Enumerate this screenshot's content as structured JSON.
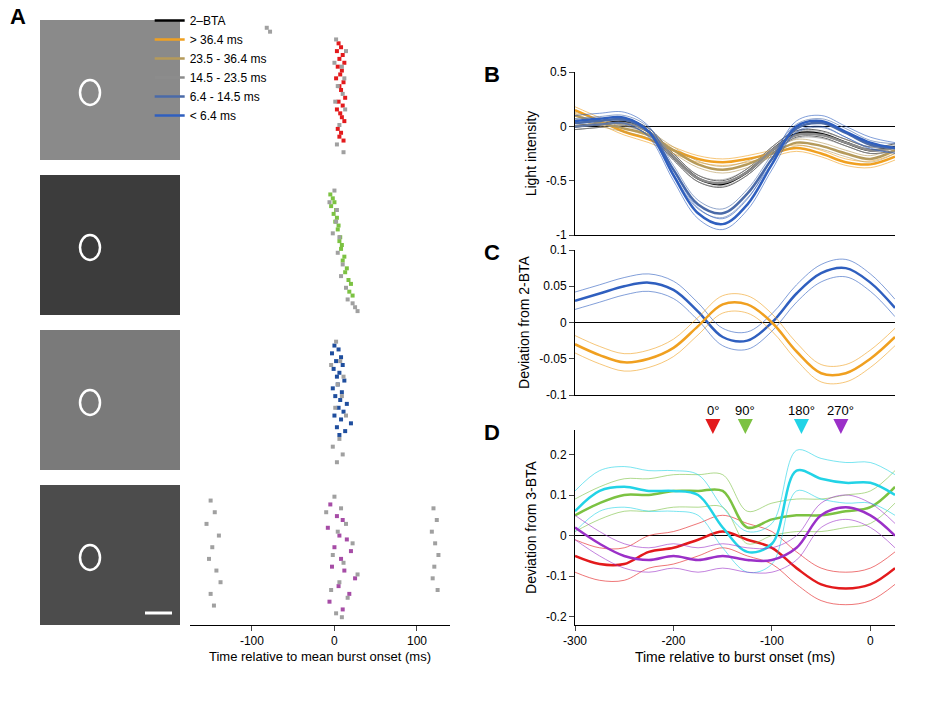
{
  "chart_data": [
    {
      "type": "scatter",
      "panel": "A",
      "ylim": [
        0,
        36
      ],
      "tick_labels": false,
      "series": [
        {
          "color": "#e31a1c",
          "marker": "square",
          "x": [
            5,
            8,
            3,
            10,
            6,
            12,
            4,
            9,
            7,
            2,
            11,
            6,
            8,
            13,
            5,
            10,
            3,
            7,
            9,
            12,
            4,
            8,
            6,
            11
          ],
          "y": [
            30,
            29,
            28,
            27,
            26,
            25,
            24,
            23,
            22,
            21,
            20,
            19,
            18,
            16,
            15,
            14,
            13,
            12,
            11,
            10,
            8,
            7,
            6,
            5
          ]
        },
        {
          "color": "#a0a0a0",
          "marker": "square",
          "x": [
            2,
            14,
            0,
            9,
            12,
            4,
            10,
            1,
            13,
            6,
            3,
            11,
            -82,
            -78
          ],
          "y": [
            31,
            28,
            25,
            24,
            21,
            19,
            17,
            15,
            13,
            9,
            4,
            2,
            34,
            33
          ]
        }
      ]
    },
    {
      "type": "scatter",
      "ylim": [
        0,
        36
      ],
      "tick_labels": false,
      "series": [
        {
          "color": "#7cc242",
          "marker": "square",
          "x": [
            -5,
            -2,
            0,
            -4,
            2,
            -1,
            3,
            1,
            5,
            4,
            7,
            6,
            9,
            8,
            12,
            10,
            15,
            13,
            17,
            20,
            18,
            22
          ],
          "y": [
            31,
            30,
            29,
            28,
            27,
            26,
            25,
            24,
            23,
            22,
            20,
            19,
            18,
            17,
            15,
            14,
            12,
            11,
            9,
            8,
            6,
            5
          ]
        },
        {
          "color": "#a0a0a0",
          "marker": "square",
          "x": [
            0,
            -6,
            3,
            2,
            -2,
            6,
            4,
            10,
            8,
            14,
            16,
            22,
            25,
            28
          ],
          "y": [
            32,
            29,
            27,
            24,
            21,
            20,
            16,
            13,
            10,
            7,
            4,
            3,
            2,
            1
          ]
        }
      ]
    },
    {
      "type": "scatter",
      "ylim": [
        0,
        36
      ],
      "tick_labels": false,
      "series": [
        {
          "color": "#1f4e9e",
          "marker": "square",
          "x": [
            0,
            5,
            -3,
            8,
            2,
            10,
            -1,
            6,
            3,
            12,
            4,
            -2,
            9,
            1,
            7,
            15,
            5,
            11,
            0,
            8,
            20,
            3,
            13,
            6
          ],
          "y": [
            32,
            31,
            30,
            29,
            28,
            27,
            26,
            25,
            24,
            23,
            22,
            21,
            20,
            19,
            18,
            17,
            16,
            15,
            14,
            13,
            12,
            11,
            10,
            9
          ]
        },
        {
          "color": "#a0a0a0",
          "marker": "square",
          "x": [
            2,
            7,
            -4,
            11,
            4,
            9,
            1,
            14,
            6,
            -2,
            10,
            3
          ],
          "y": [
            33,
            28,
            27,
            24,
            22,
            19,
            16,
            14,
            8,
            6,
            4,
            2
          ]
        }
      ]
    },
    {
      "type": "scatter",
      "xlabel": "Time relative to mean burst onset (ms)",
      "xlim": [
        -175,
        140
      ],
      "xticks": [
        -100,
        0,
        100
      ],
      "ylim": [
        0,
        36
      ],
      "tick_labels": "x",
      "series": [
        {
          "color": "#a64ca6",
          "marker": "square",
          "x": [
            -5,
            3,
            10,
            -8,
            6,
            15,
            0,
            20,
            8,
            -3,
            12,
            25,
            5,
            18,
            -6,
            10
          ],
          "y": [
            31,
            28,
            27,
            25,
            23,
            22,
            20,
            19,
            17,
            15,
            14,
            12,
            10,
            8,
            6,
            4
          ]
        },
        {
          "color": "#a0a0a0",
          "marker": "square",
          "x": [
            0,
            8,
            -10,
            14,
            4,
            22,
            -2,
            11,
            28,
            6,
            -4,
            16,
            2,
            9,
            -150,
            -145,
            -155,
            -140,
            -148,
            -152,
            -143,
            -138,
            -150,
            -146,
            120,
            124,
            118,
            122,
            126,
            121,
            119,
            125
          ],
          "y": [
            33,
            30,
            29,
            26,
            24,
            21,
            18,
            16,
            13,
            11,
            9,
            7,
            3,
            2,
            32,
            29,
            26,
            23,
            20,
            17,
            14,
            11,
            8,
            5,
            30,
            27,
            24,
            21,
            18,
            15,
            12,
            9
          ]
        }
      ]
    },
    {
      "type": "line",
      "panel": "B",
      "ylabel": "Light intensity",
      "xlim": [
        -300,
        25
      ],
      "ylim": [
        -1,
        0.5
      ],
      "yticks": [
        -1,
        -0.5,
        0,
        0.5
      ],
      "tick_labels": "y",
      "legend": "top",
      "x": [
        -300,
        -275,
        -250,
        -225,
        -200,
        -175,
        -150,
        -125,
        -100,
        -75,
        -50,
        -25,
        0,
        25
      ],
      "series": [
        {
          "name": "2–BTA",
          "color": "#000000",
          "values": [
            0.0,
            0.02,
            0.04,
            -0.05,
            -0.28,
            -0.48,
            -0.53,
            -0.42,
            -0.22,
            -0.07,
            -0.07,
            -0.15,
            -0.22,
            -0.19
          ],
          "error": [
            0.03,
            0.03,
            0.03,
            0.03,
            0.03,
            0.03,
            0.03,
            0.03,
            0.03,
            0.03,
            0.03,
            0.03,
            0.03,
            0.03
          ]
        },
        {
          "name": "> 36.4 ms",
          "color": "#f0a020",
          "values": [
            0.15,
            0.05,
            -0.05,
            -0.12,
            -0.22,
            -0.3,
            -0.33,
            -0.3,
            -0.25,
            -0.2,
            -0.25,
            -0.33,
            -0.35,
            -0.28
          ],
          "error": [
            0.03,
            0.03,
            0.03,
            0.03,
            0.03,
            0.03,
            0.03,
            0.03,
            0.03,
            0.03,
            0.03,
            0.03,
            0.03,
            0.03
          ]
        },
        {
          "name": "23.5 - 36.4 ms",
          "color": "#b59a5a",
          "values": [
            0.1,
            0.03,
            -0.02,
            -0.08,
            -0.22,
            -0.35,
            -0.4,
            -0.35,
            -0.25,
            -0.15,
            -0.18,
            -0.25,
            -0.3,
            -0.22
          ],
          "error": [
            0.03,
            0.03,
            0.03,
            0.03,
            0.03,
            0.03,
            0.03,
            0.03,
            0.03,
            0.03,
            0.03,
            0.03,
            0.03,
            0.03
          ]
        },
        {
          "name": "14.5 - 23.5 ms",
          "color": "#8c8c8c",
          "values": [
            0.0,
            0.02,
            0.03,
            -0.05,
            -0.28,
            -0.48,
            -0.52,
            -0.42,
            -0.22,
            -0.08,
            -0.08,
            -0.15,
            -0.22,
            -0.2
          ],
          "error": [
            0.03,
            0.03,
            0.03,
            0.03,
            0.03,
            0.03,
            0.03,
            0.03,
            0.03,
            0.03,
            0.03,
            0.03,
            0.03,
            0.03
          ]
        },
        {
          "name": "6.4 - 14.5 ms",
          "color": "#4a6aa8",
          "values": [
            0.03,
            0.05,
            0.06,
            -0.05,
            -0.4,
            -0.72,
            -0.8,
            -0.62,
            -0.3,
            -0.02,
            0.03,
            -0.06,
            -0.17,
            -0.2
          ],
          "error": [
            0.04,
            0.04,
            0.04,
            0.04,
            0.04,
            0.04,
            0.04,
            0.04,
            0.04,
            0.04,
            0.04,
            0.04,
            0.04,
            0.04
          ]
        },
        {
          "name": "< 6.4 ms",
          "color": "#2f5fbf",
          "values": [
            0.05,
            0.07,
            0.08,
            -0.05,
            -0.45,
            -0.8,
            -0.9,
            -0.72,
            -0.35,
            0.0,
            0.05,
            -0.05,
            -0.15,
            -0.2
          ],
          "error": [
            0.05,
            0.05,
            0.05,
            0.05,
            0.05,
            0.05,
            0.05,
            0.05,
            0.05,
            0.05,
            0.05,
            0.05,
            0.05,
            0.05
          ]
        }
      ]
    },
    {
      "type": "line",
      "panel": "C",
      "ylabel": "Deviation from 2-BTA",
      "xlim": [
        -300,
        25
      ],
      "ylim": [
        -0.1,
        0.1
      ],
      "yticks": [
        -0.1,
        -0.05,
        0,
        0.05,
        0.1
      ],
      "tick_labels": "y",
      "x": [
        -300,
        -275,
        -250,
        -225,
        -200,
        -175,
        -150,
        -125,
        -100,
        -75,
        -50,
        -25,
        0,
        25
      ],
      "series": [
        {
          "color": "#2f5fbf",
          "values": [
            0.03,
            0.04,
            0.05,
            0.055,
            0.045,
            0.015,
            -0.02,
            -0.025,
            0.0,
            0.04,
            0.068,
            0.075,
            0.055,
            0.02
          ],
          "error": [
            0.012,
            0.012,
            0.012,
            0.012,
            0.012,
            0.012,
            0.012,
            0.012,
            0.012,
            0.012,
            0.012,
            0.012,
            0.012,
            0.012
          ]
        },
        {
          "color": "#f0a020",
          "values": [
            -0.03,
            -0.045,
            -0.055,
            -0.05,
            -0.035,
            -0.005,
            0.025,
            0.025,
            0.0,
            -0.04,
            -0.07,
            -0.07,
            -0.05,
            -0.02
          ],
          "error": [
            0.012,
            0.012,
            0.012,
            0.012,
            0.012,
            0.012,
            0.012,
            0.012,
            0.012,
            0.012,
            0.012,
            0.012,
            0.012,
            0.012
          ]
        }
      ]
    },
    {
      "type": "line",
      "panel": "D",
      "xlabel": "Time relative to burst onset (ms)",
      "ylabel": "Deviation from 3-BTA",
      "xlim": [
        -300,
        25
      ],
      "xticks": [
        -300,
        -200,
        -100,
        0
      ],
      "ylim": [
        -0.22,
        0.26
      ],
      "yticks": [
        -0.2,
        -0.1,
        0,
        0.1,
        0.2
      ],
      "x": [
        -300,
        -275,
        -250,
        -225,
        -200,
        -175,
        -150,
        -125,
        -100,
        -75,
        -50,
        -25,
        0,
        25
      ],
      "arrows": [
        {
          "label": "0°",
          "x": -160,
          "color": "#e31a1c"
        },
        {
          "label": "90°",
          "x": -127,
          "color": "#7cc242"
        },
        {
          "label": "180°",
          "x": -70,
          "color": "#22d3e6"
        },
        {
          "label": "270°",
          "x": -30,
          "color": "#9b30c8"
        }
      ],
      "series": [
        {
          "color": "#e31a1c",
          "values": [
            -0.05,
            -0.07,
            -0.07,
            -0.04,
            -0.03,
            -0.01,
            0.01,
            -0.01,
            -0.03,
            -0.08,
            -0.12,
            -0.13,
            -0.12,
            -0.08
          ],
          "error": [
            0.04,
            0.04,
            0.04,
            0.04,
            0.04,
            0.04,
            0.04,
            0.04,
            0.04,
            0.04,
            0.04,
            0.04,
            0.04,
            0.04
          ]
        },
        {
          "color": "#7cc242",
          "values": [
            0.05,
            0.08,
            0.1,
            0.1,
            0.11,
            0.11,
            0.11,
            0.02,
            0.04,
            0.05,
            0.05,
            0.06,
            0.07,
            0.12
          ],
          "error": [
            0.04,
            0.04,
            0.04,
            0.04,
            0.04,
            0.04,
            0.04,
            0.04,
            0.04,
            0.04,
            0.04,
            0.04,
            0.04,
            0.04
          ]
        },
        {
          "color": "#22d3e6",
          "values": [
            0.06,
            0.11,
            0.12,
            0.11,
            0.11,
            0.1,
            0.02,
            -0.04,
            -0.02,
            0.16,
            0.14,
            0.13,
            0.13,
            0.1
          ],
          "error": [
            0.05,
            0.05,
            0.05,
            0.05,
            0.05,
            0.05,
            0.05,
            0.05,
            0.05,
            0.05,
            0.05,
            0.05,
            0.05,
            0.05
          ]
        },
        {
          "color": "#9b30c8",
          "values": [
            0.02,
            -0.02,
            -0.05,
            -0.06,
            -0.05,
            -0.06,
            -0.05,
            -0.06,
            -0.06,
            -0.03,
            0.05,
            0.07,
            0.05,
            0.0
          ],
          "error": [
            0.03,
            0.03,
            0.03,
            0.03,
            0.03,
            0.03,
            0.03,
            0.03,
            0.03,
            0.03,
            0.03,
            0.03,
            0.03,
            0.03
          ]
        }
      ]
    }
  ]
}
